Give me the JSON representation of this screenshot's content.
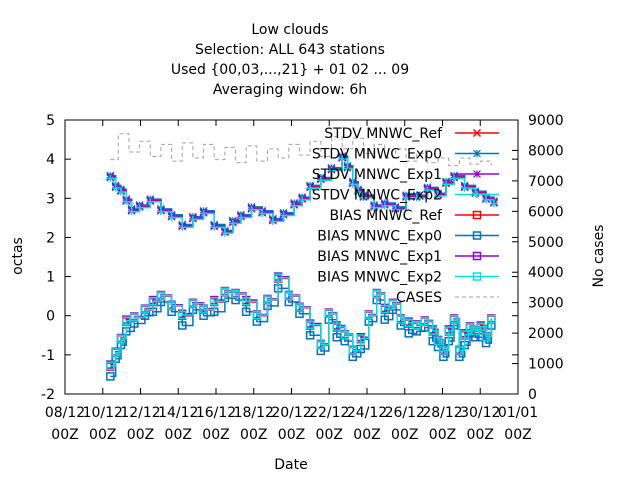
{
  "chart_data": {
    "type": "line",
    "title_lines": [
      "Low clouds",
      "Selection: ALL    643 stations",
      "Used {00,03,...,21} + 01 02 ... 09",
      "Averaging window:  6h"
    ],
    "xlabel": "Date",
    "ylabel": "octas",
    "y2label": "No cases",
    "ylim": [
      -2,
      5
    ],
    "y2lim": [
      0,
      9000
    ],
    "xlim": [
      0,
      17
    ],
    "yticks": [
      "-2",
      "-1",
      "0",
      "1",
      "2",
      "3",
      "4",
      "5"
    ],
    "y2ticks": [
      "0",
      "1000",
      "2000",
      "3000",
      "4000",
      "5000",
      "6000",
      "7000",
      "8000",
      "9000"
    ],
    "xticks": [
      {
        "line1": "08/12",
        "line2": "00Z"
      },
      {
        "line1": "10/12",
        "line2": "00Z"
      },
      {
        "line1": "12/12",
        "line2": "00Z"
      },
      {
        "line1": "14/12",
        "line2": "00Z"
      },
      {
        "line1": "16/12",
        "line2": "00Z"
      },
      {
        "line1": "18/12",
        "line2": "00Z"
      },
      {
        "line1": "20/12",
        "line2": "00Z"
      },
      {
        "line1": "22/12",
        "line2": "00Z"
      },
      {
        "line1": "24/12",
        "line2": "00Z"
      },
      {
        "line1": "26/12",
        "line2": "00Z"
      },
      {
        "line1": "28/12",
        "line2": "00Z"
      },
      {
        "line1": "30/12",
        "line2": "00Z"
      },
      {
        "line1": "01/01",
        "line2": "00Z"
      }
    ],
    "grid": false,
    "legend_position": "top-right",
    "stdv_base": {
      "x": [
        1.7,
        1.9,
        2.1,
        2.3,
        2.5,
        2.8,
        3.2,
        3.6,
        4.0,
        4.4,
        4.8,
        5.2,
        5.6,
        6.0,
        6.3,
        6.6,
        7.0,
        7.4,
        7.8,
        8.2,
        8.6,
        8.9,
        9.2,
        9.6,
        10.0,
        10.4,
        10.6,
        10.8,
        11.0,
        11.2,
        11.6,
        12.0,
        12.4,
        12.8,
        13.2,
        13.6,
        14.0,
        14.3,
        14.6,
        15.0,
        15.4,
        15.8,
        16.1
      ],
      "y": [
        3.55,
        3.3,
        3.2,
        2.95,
        2.7,
        2.8,
        2.95,
        2.7,
        2.55,
        2.3,
        2.5,
        2.65,
        2.3,
        2.15,
        2.4,
        2.55,
        2.75,
        2.65,
        2.45,
        2.6,
        2.85,
        3.0,
        3.3,
        3.5,
        3.75,
        4.05,
        3.8,
        3.4,
        3.2,
        3.05,
        2.8,
        2.85,
        2.75,
        3.05,
        3.05,
        3.25,
        3.1,
        3.4,
        3.55,
        3.3,
        3.15,
        3.0,
        2.9
      ]
    },
    "bias_base": {
      "x": [
        1.7,
        1.9,
        2.1,
        2.3,
        2.6,
        3.0,
        3.3,
        3.6,
        4.0,
        4.4,
        4.8,
        5.2,
        5.6,
        6.0,
        6.4,
        6.8,
        7.2,
        7.6,
        8.0,
        8.4,
        8.8,
        9.2,
        9.6,
        9.9,
        10.2,
        10.5,
        10.8,
        11.1,
        11.4,
        11.7,
        12.0,
        12.3,
        12.6,
        12.9,
        13.2,
        13.5,
        13.8,
        14.0,
        14.2,
        14.4,
        14.6,
        14.8,
        15.0,
        15.2,
        15.4,
        15.6,
        15.8,
        16.0
      ],
      "y": [
        -1.3,
        -0.95,
        -0.6,
        -0.15,
        -0.05,
        0.15,
        0.35,
        0.5,
        0.25,
        0.0,
        0.3,
        0.15,
        0.35,
        0.6,
        0.55,
        0.35,
        0.0,
        0.4,
        0.95,
        0.5,
        0.2,
        -0.25,
        -0.75,
        0.05,
        -0.3,
        -0.5,
        -0.9,
        -0.6,
        0.0,
        0.55,
        0.15,
        0.3,
        -0.1,
        -0.2,
        -0.25,
        -0.15,
        -0.4,
        -0.65,
        -0.9,
        -0.4,
        -0.1,
        -0.9,
        -0.5,
        -0.3,
        -0.4,
        -0.3,
        -0.55,
        -0.1
      ]
    },
    "cases": {
      "x": [
        1.7,
        2.0,
        2.4,
        2.8,
        3.2,
        3.6,
        4.0,
        4.4,
        4.8,
        5.2,
        5.6,
        6.0,
        6.4,
        6.8,
        7.2,
        7.6,
        8.0,
        8.4,
        8.8,
        9.2,
        9.6,
        10.0,
        10.4,
        10.8,
        11.2,
        11.6,
        12.0,
        12.4,
        12.8,
        13.2,
        13.6,
        14.0,
        14.4,
        14.8,
        15.2,
        15.6,
        16.0
      ],
      "y": [
        7700,
        8550,
        7950,
        8300,
        7800,
        8200,
        7650,
        8250,
        7750,
        8200,
        7700,
        8100,
        7600,
        8150,
        7650,
        8050,
        7750,
        8200,
        7850,
        8300,
        7800,
        8450,
        8050,
        8400,
        7900,
        8200,
        7750,
        8050,
        7650,
        7900,
        7600,
        7750,
        7500,
        7750,
        7550,
        7650,
        7500
      ]
    },
    "series": [
      {
        "name": "STDV MNWC_Ref",
        "kind": "stdv",
        "color": "#ff0000",
        "marker": "x",
        "dy": 0.0,
        "bias_dy": 0.0
      },
      {
        "name": "STDV MNWC_Exp0",
        "kind": "stdv",
        "color": "#0072c6",
        "marker": "*",
        "dy": 0.03,
        "bias_dy": 0.0
      },
      {
        "name": "STDV MNWC_Exp1",
        "kind": "stdv",
        "color": "#9400d3",
        "marker": "*",
        "dy": -0.02,
        "bias_dy": 0.0
      },
      {
        "name": "STDV MNWC_Exp2",
        "kind": "stdv",
        "color": "#00e0e0",
        "marker": "+",
        "dy": -0.04,
        "bias_dy": 0.0
      },
      {
        "name": "BIAS MNWC_Ref",
        "kind": "bias",
        "color": "#ff0000",
        "marker": "s",
        "dy": 0.0,
        "bias_dy": 0.0
      },
      {
        "name": "BIAS MNWC_Exp0",
        "kind": "bias",
        "color": "#0072c6",
        "marker": "s",
        "dy": 0.0,
        "bias_dy": -0.25
      },
      {
        "name": "BIAS MNWC_Exp1",
        "kind": "bias",
        "color": "#9400d3",
        "marker": "s",
        "dy": 0.0,
        "bias_dy": 0.05
      },
      {
        "name": "BIAS MNWC_Exp2",
        "kind": "bias",
        "color": "#00e0e0",
        "marker": "s",
        "dy": 0.0,
        "bias_dy": 0.02
      },
      {
        "name": "CASES",
        "kind": "cases",
        "color": "#a0a0a0",
        "marker": "none",
        "dy": 0.0,
        "bias_dy": 0.0
      }
    ]
  }
}
